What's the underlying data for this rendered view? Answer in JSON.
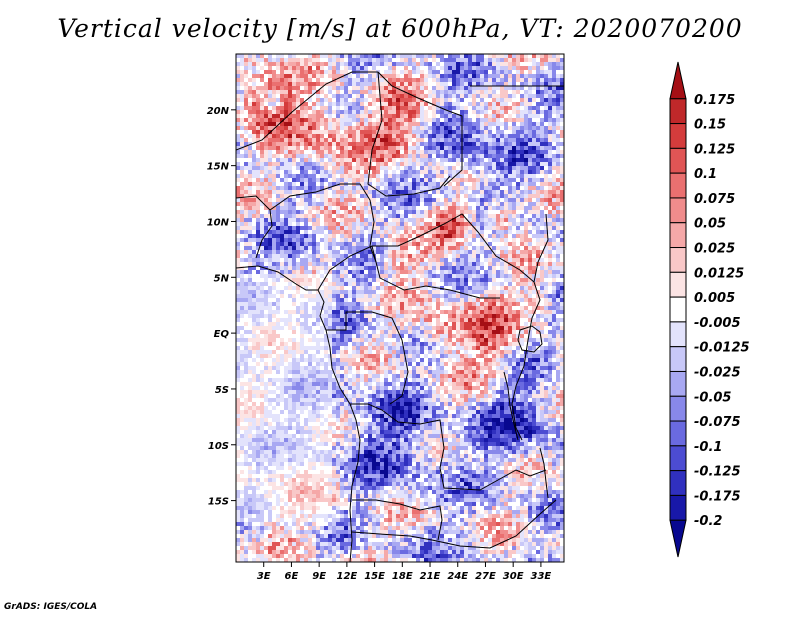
{
  "title": "Vertical velocity [m/s] at 600hPa, VT: 2020070200",
  "credit": "GrADS: IGES/COLA",
  "map": {
    "lon_range": [
      0,
      35.5
    ],
    "lat_range": [
      -20.5,
      25
    ],
    "lon_ticks": [
      {
        "value": 3,
        "label": "3E"
      },
      {
        "value": 6,
        "label": "6E"
      },
      {
        "value": 9,
        "label": "9E"
      },
      {
        "value": 12,
        "label": "12E"
      },
      {
        "value": 15,
        "label": "15E"
      },
      {
        "value": 18,
        "label": "18E"
      },
      {
        "value": 21,
        "label": "21E"
      },
      {
        "value": 24,
        "label": "24E"
      },
      {
        "value": 27,
        "label": "27E"
      },
      {
        "value": 30,
        "label": "30E"
      },
      {
        "value": 33,
        "label": "33E"
      }
    ],
    "lat_ticks": [
      {
        "value": 20,
        "label": "20N"
      },
      {
        "value": 15,
        "label": "15N"
      },
      {
        "value": 10,
        "label": "10N"
      },
      {
        "value": 5,
        "label": "5N"
      },
      {
        "value": 0,
        "label": "EQ"
      },
      {
        "value": -5,
        "label": "5S"
      },
      {
        "value": -10,
        "label": "10S"
      },
      {
        "value": -15,
        "label": "15S"
      }
    ]
  },
  "colorbar": {
    "levels": [
      "0.175",
      "0.15",
      "0.125",
      "0.1",
      "0.075",
      "0.05",
      "0.025",
      "0.0125",
      "0.005",
      "-0.005",
      "-0.0125",
      "-0.025",
      "-0.05",
      "-0.075",
      "-0.1",
      "-0.125",
      "-0.175",
      "-0.2"
    ],
    "colors": [
      "#a50f15",
      "#c0282a",
      "#d43c3c",
      "#e05555",
      "#ea7070",
      "#f08c8c",
      "#f5a8a8",
      "#f9c8c8",
      "#fce4e4",
      "#ffffff",
      "#e3e3fc",
      "#c8c8f8",
      "#a8a8f2",
      "#8888ea",
      "#6a6ae0",
      "#4c4cd2",
      "#3030bf",
      "#1818a8",
      "#080890"
    ]
  }
}
